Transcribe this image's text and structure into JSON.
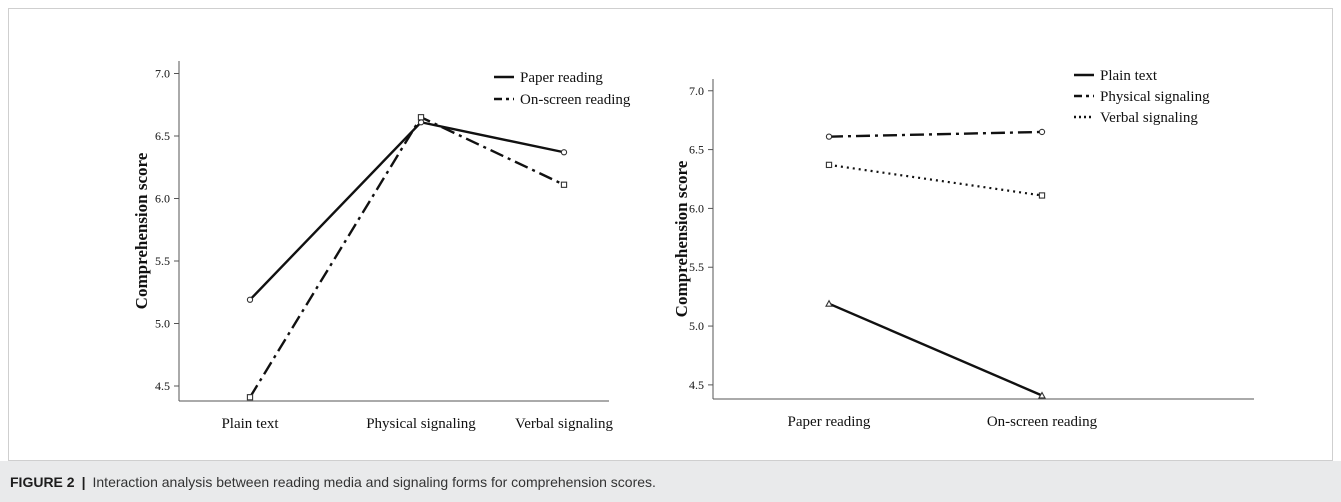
{
  "caption": {
    "label": "FIGURE 2",
    "separator": "|",
    "text": "Interaction analysis between reading media and signaling forms for comprehension scores."
  },
  "chart_data": [
    {
      "type": "line",
      "ylabel": "Comprehension score",
      "categories": [
        "Plain text",
        "Physical signaling",
        "Verbal signaling"
      ],
      "yticks": [
        "4.5",
        "5.0",
        "5.5",
        "6.0",
        "6.5",
        "7.0"
      ],
      "ylim": [
        4.38,
        7.1
      ],
      "legend_position": "top-right",
      "series": [
        {
          "name": "Paper reading",
          "style": "solid",
          "marker": "circle",
          "values": [
            5.19,
            6.61,
            6.37
          ]
        },
        {
          "name": "On-screen reading",
          "style": "dashdot",
          "marker": "square",
          "values": [
            4.41,
            6.65,
            6.11
          ]
        }
      ]
    },
    {
      "type": "line",
      "ylabel": "Comprehension score",
      "categories": [
        "Paper reading",
        "On-screen reading"
      ],
      "yticks": [
        "4.5",
        "5.0",
        "5.5",
        "6.0",
        "6.5",
        "7.0"
      ],
      "ylim": [
        4.38,
        7.1
      ],
      "legend_position": "top-right",
      "series": [
        {
          "name": "Plain text",
          "style": "solid",
          "marker": "triangle",
          "values": [
            5.19,
            4.41
          ]
        },
        {
          "name": "Physical signaling",
          "style": "dashdot",
          "marker": "circle",
          "values": [
            6.61,
            6.65
          ]
        },
        {
          "name": "Verbal signaling",
          "style": "dotted",
          "marker": "square",
          "values": [
            6.37,
            6.11
          ]
        }
      ]
    }
  ]
}
